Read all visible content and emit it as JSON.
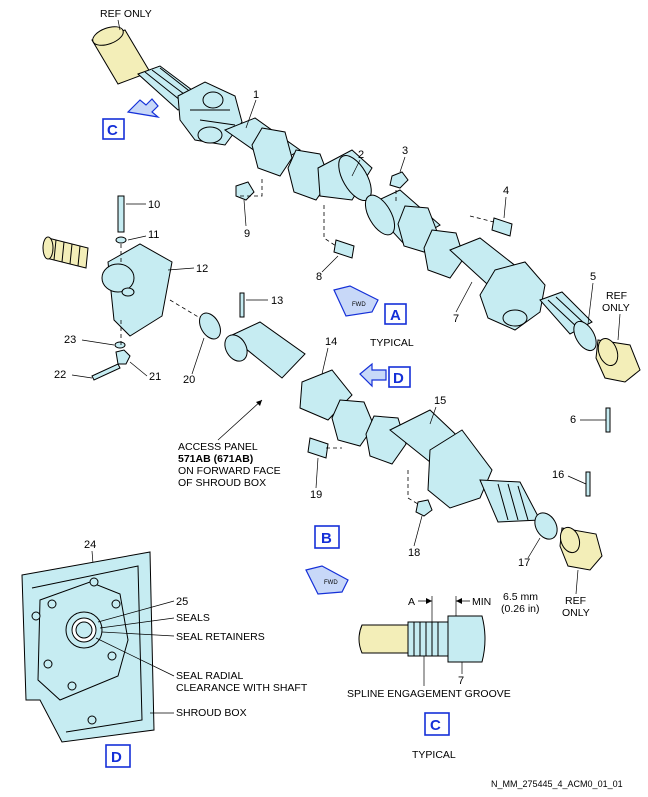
{
  "labels": {
    "ref_only_top": "REF ONLY",
    "ref_only_right_1": "REF",
    "ref_only_right_2": "ONLY",
    "ref_only_bottom_1": "REF",
    "ref_only_bottom_2": "ONLY",
    "typical_a": "TYPICAL",
    "typical_c": "TYPICAL",
    "access_panel_1": "ACCESS PANEL",
    "access_panel_2": "571AB (671AB)",
    "access_panel_3": "ON FORWARD FACE",
    "access_panel_4": "OF SHROUD BOX",
    "seals": "SEALS",
    "seal_retainers": "SEAL RETAINERS",
    "seal_radial_1": "SEAL RADIAL",
    "seal_radial_2": "CLEARANCE WITH SHAFT",
    "shroud_box": "SHROUD BOX",
    "spline_groove": "SPLINE ENGAGEMENT GROOVE",
    "dim_a": "A",
    "dim_min": "MIN",
    "dim_mm": "6.5 mm",
    "dim_in": "(0.26 in)",
    "fwd": "FWD",
    "drawing_id": "N_MM_275445_4_ACM0_01_01"
  },
  "view_boxes": {
    "a": "A",
    "b": "B",
    "c_top": "C",
    "c_detail": "C",
    "d_arrow": "D",
    "d_detail": "D"
  },
  "callouts": [
    "1",
    "2",
    "3",
    "4",
    "5",
    "6",
    "7",
    "7",
    "8",
    "9",
    "10",
    "11",
    "12",
    "13",
    "14",
    "15",
    "16",
    "17",
    "18",
    "19",
    "20",
    "21",
    "22",
    "23",
    "24",
    "25"
  ],
  "colors": {
    "part_fill": "#c6ecf2",
    "ref_fill": "#f3eeb8",
    "view_box": "#1530d8"
  }
}
